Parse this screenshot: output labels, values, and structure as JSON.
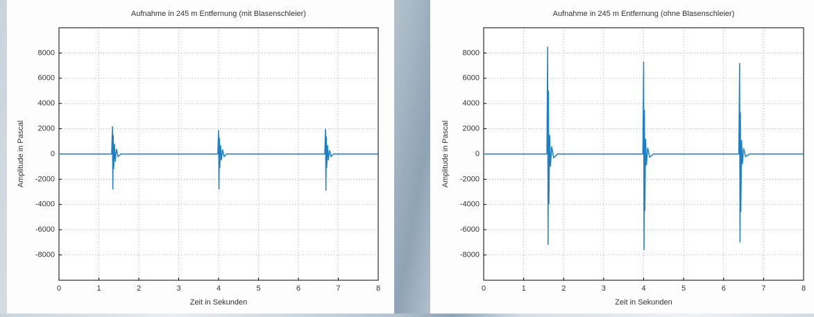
{
  "chart_data": [
    {
      "type": "line",
      "title": "Aufnahme in 245 m Entfernung (mit Blasenschleier)",
      "x_label": "Zeit in Sekunden",
      "y_label": "Amplitude in Pascal",
      "x": [
        0,
        1.32,
        1.34,
        1.35,
        1.36,
        1.37,
        1.39,
        1.41,
        1.44,
        1.48,
        1.55,
        3.98,
        4.0,
        4.01,
        4.02,
        4.03,
        4.05,
        4.07,
        4.1,
        4.14,
        4.2,
        6.66,
        6.68,
        6.69,
        6.7,
        6.71,
        6.73,
        6.75,
        6.78,
        6.82,
        6.88,
        8
      ],
      "values": [
        0,
        0,
        2200,
        -2800,
        1500,
        -1200,
        800,
        -600,
        400,
        -200,
        0,
        0,
        1900,
        -2800,
        1300,
        -1100,
        700,
        -500,
        350,
        -200,
        0,
        0,
        2000,
        -2900,
        1400,
        -1100,
        700,
        -500,
        300,
        -200,
        0,
        0
      ],
      "color": "#1f7fc4",
      "xlim": [
        0,
        8
      ],
      "xticks": [
        0,
        1,
        2,
        3,
        4,
        5,
        6,
        7,
        8
      ],
      "ylim": [
        -10000,
        10000
      ],
      "yticks": [
        -8000,
        -6000,
        -4000,
        -2000,
        0,
        2000,
        4000,
        6000,
        8000
      ],
      "grid": true
    },
    {
      "type": "line",
      "title": "Aufnahme in 245 m Entfernung (ohne Blasenschleier)",
      "x_label": "Zeit in Sekunden",
      "y_label": "Amplitude in Pascal",
      "x": [
        0,
        1.58,
        1.6,
        1.61,
        1.62,
        1.63,
        1.65,
        1.67,
        1.7,
        1.75,
        1.85,
        3.98,
        4.0,
        4.01,
        4.02,
        4.03,
        4.05,
        4.07,
        4.1,
        4.15,
        4.25,
        6.38,
        6.4,
        6.41,
        6.42,
        6.43,
        6.45,
        6.47,
        6.5,
        6.55,
        6.65,
        8
      ],
      "values": [
        0,
        0,
        8500,
        -7200,
        5000,
        -4000,
        1500,
        -1000,
        600,
        -300,
        0,
        0,
        7300,
        -7600,
        3500,
        -4500,
        1200,
        -900,
        500,
        -250,
        0,
        0,
        7200,
        -7000,
        3300,
        -4600,
        1100,
        -800,
        450,
        -200,
        0,
        0
      ],
      "color": "#1f7fc4",
      "xlim": [
        0,
        8
      ],
      "xticks": [
        0,
        1,
        2,
        3,
        4,
        5,
        6,
        7,
        8
      ],
      "ylim": [
        -10000,
        10000
      ],
      "yticks": [
        -8000,
        -6000,
        -4000,
        -2000,
        0,
        2000,
        4000,
        6000,
        8000
      ],
      "grid": true
    }
  ]
}
